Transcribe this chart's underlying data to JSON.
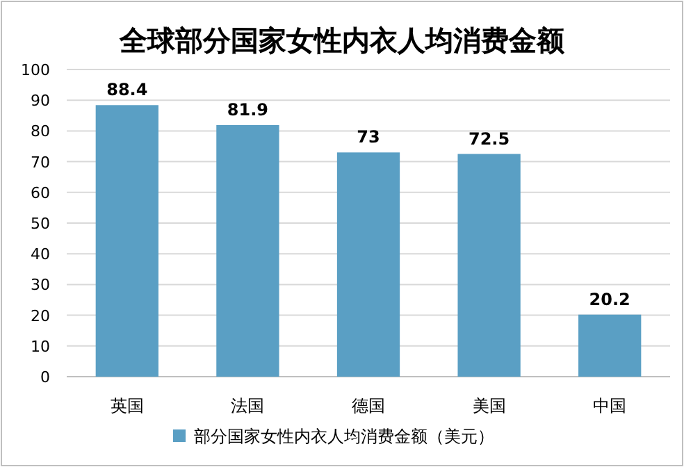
{
  "chart_data": {
    "type": "bar",
    "title": "全球部分国家女性内衣人均消费金额",
    "categories": [
      "英国",
      "法国",
      "德国",
      "美国",
      "中国"
    ],
    "series": [
      {
        "name": "部分国家女性内衣人均消费金额（美元）",
        "color": "#5a9fc4",
        "values": [
          88.4,
          81.9,
          73,
          72.5,
          20.2
        ]
      }
    ],
    "ylim": [
      0,
      100
    ],
    "yticks": [
      0,
      10,
      20,
      30,
      40,
      50,
      60,
      70,
      80,
      90,
      100
    ],
    "grid": "y",
    "legend": "bottom",
    "data_labels": true
  }
}
